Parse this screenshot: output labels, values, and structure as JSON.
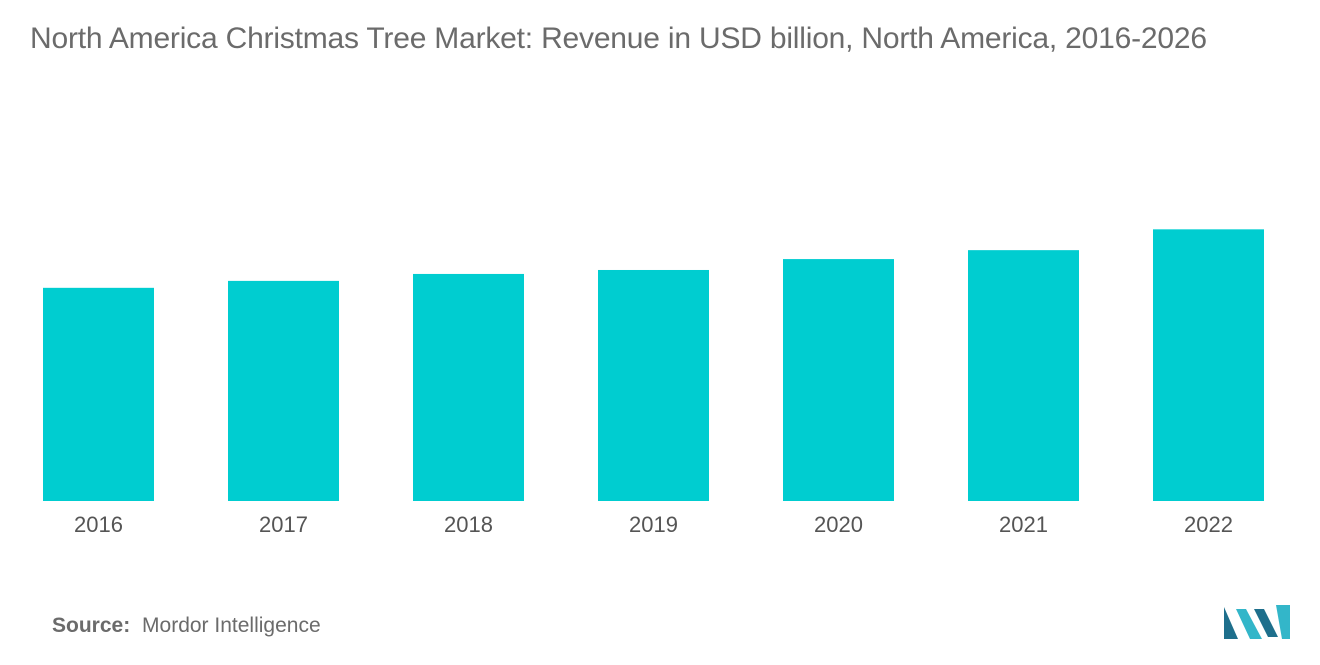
{
  "title": "North America Christmas Tree Market: Revenue in USD billion, North America, 2016-2026",
  "source": {
    "key": "Source:",
    "value": "Mordor Intelligence"
  },
  "logo": {
    "icon": "mordor-intelligence-logo-icon",
    "color_dark": "#1e6f8c",
    "color_light": "#33b6c9"
  },
  "colors": {
    "bar": "#00cdd0"
  },
  "chart_data": {
    "type": "bar",
    "title": "North America Christmas Tree Market: Revenue in USD billion, North America, 2016-2026",
    "categories": [
      "2016",
      "2017",
      "2018",
      "2019",
      "2020",
      "2021",
      "2022"
    ],
    "values": [
      2.15,
      2.22,
      2.29,
      2.33,
      2.44,
      2.53,
      2.74
    ],
    "ylim": [
      0,
      4.7
    ],
    "xlabel": "",
    "ylabel": "",
    "grid": false,
    "legend": "none"
  }
}
